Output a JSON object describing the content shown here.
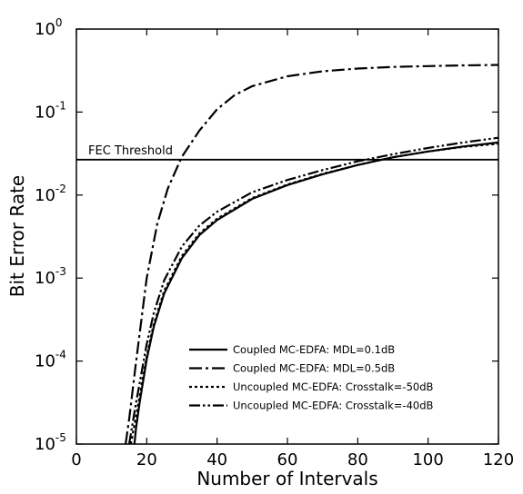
{
  "chart_data": {
    "type": "line",
    "xlabel": "Number of Intervals",
    "ylabel": "Bit Error Rate",
    "xlim": [
      0,
      120
    ],
    "ylim": [
      1e-05,
      1
    ],
    "yscale": "log",
    "grid": false,
    "legend_position": "bottom-right",
    "xticks": [
      "0",
      "20",
      "40",
      "60",
      "80",
      "100",
      "120"
    ],
    "yticks": [
      {
        "base": "10",
        "exp": "-5",
        "value": 1e-05
      },
      {
        "base": "10",
        "exp": "-4",
        "value": 0.0001
      },
      {
        "base": "10",
        "exp": "-3",
        "value": 0.001
      },
      {
        "base": "10",
        "exp": "-2",
        "value": 0.01
      },
      {
        "base": "10",
        "exp": "-1",
        "value": 0.1
      },
      {
        "base": "10",
        "exp": "0",
        "value": 1
      }
    ],
    "annotations": [
      {
        "text": "FEC Threshold",
        "y": 0.0267
      }
    ],
    "series": [
      {
        "name": "Coupled MC-EDFA: MDL=0.1dB",
        "dash": "solid",
        "x": [
          16.5,
          17,
          18,
          20,
          22,
          25,
          30,
          35,
          40,
          50,
          60,
          70,
          80,
          90,
          100,
          110,
          120
        ],
        "y": [
          1e-05,
          1.6e-05,
          3.2e-05,
          0.000105,
          0.00026,
          0.00066,
          0.00174,
          0.0033,
          0.005,
          0.009,
          0.0132,
          0.0178,
          0.023,
          0.0285,
          0.0335,
          0.0385,
          0.043
        ]
      },
      {
        "name": "Coupled MC-EDFA: MDL=0.5dB",
        "dash": "dashdot",
        "x": [
          14,
          15,
          17,
          20,
          23,
          26,
          30,
          35,
          40,
          45,
          50,
          60,
          70,
          80,
          90,
          100,
          110,
          120
        ],
        "y": [
          1e-05,
          2e-05,
          0.0001,
          0.001,
          0.0045,
          0.012,
          0.029,
          0.06,
          0.108,
          0.16,
          0.205,
          0.27,
          0.31,
          0.334,
          0.35,
          0.358,
          0.365,
          0.37
        ]
      },
      {
        "name": "Uncoupled MC-EDFA: Crosstalk=-50dB",
        "dash": "dotted",
        "x": [
          15.5,
          17,
          20,
          22,
          25,
          30,
          35,
          40,
          50,
          60,
          70,
          80,
          90,
          100,
          110,
          120
        ],
        "y": [
          1e-05,
          2.2e-05,
          0.000115,
          0.00028,
          0.00071,
          0.00185,
          0.00345,
          0.0052,
          0.0092,
          0.0134,
          0.018,
          0.023,
          0.0285,
          0.0335,
          0.038,
          0.0415
        ]
      },
      {
        "name": "Uncoupled MC-EDFA: Crosstalk=-40dB",
        "dash": "dashdotdot",
        "x": [
          15,
          17,
          20,
          22,
          25,
          30,
          35,
          40,
          50,
          60,
          70,
          80,
          90,
          100,
          110,
          120
        ],
        "y": [
          1e-05,
          3.2e-05,
          0.00016,
          0.00038,
          0.00095,
          0.0024,
          0.0043,
          0.0063,
          0.0108,
          0.0152,
          0.02,
          0.0255,
          0.031,
          0.037,
          0.043,
          0.049
        ]
      }
    ]
  }
}
